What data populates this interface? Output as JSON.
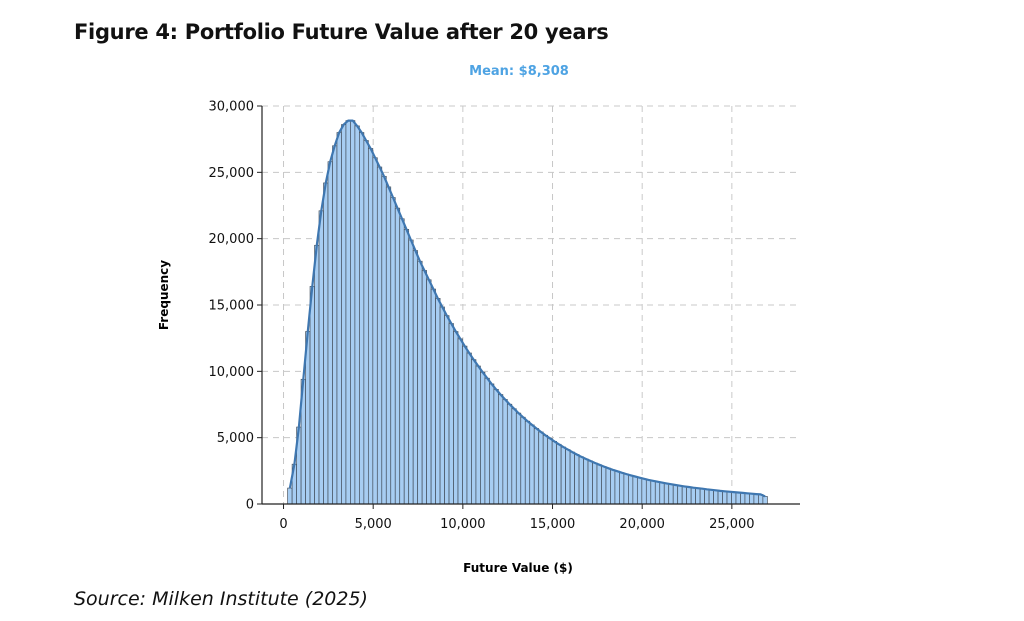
{
  "figure": {
    "title": "Figure 4: Portfolio Future Value after 20 years",
    "source": "Source: Milken Institute (2025)"
  },
  "chart_data": {
    "type": "bar",
    "title": "Mean: $8,308",
    "xlabel": "Future Value ($)",
    "ylabel": "Frequency",
    "xlim": [
      -1200,
      28800
    ],
    "ylim": [
      0,
      30000
    ],
    "grid": true,
    "colors": {
      "bar_fill": "#a7cdf2",
      "bar_stroke": "#44505e",
      "kde_line": "#3f77b0",
      "title": "#4ea3e3",
      "grid": "#c8c8c8"
    },
    "x_ticks": [
      0,
      5000,
      10000,
      15000,
      20000,
      25000
    ],
    "x_tick_labels": [
      "0",
      "5,000",
      "10,000",
      "15,000",
      "20,000",
      "25,000"
    ],
    "y_ticks": [
      0,
      5000,
      10000,
      15000,
      20000,
      25000,
      30000
    ],
    "y_tick_labels": [
      "0",
      "5,000",
      "10,000",
      "15,000",
      "20,000",
      "25,000",
      "30,000"
    ],
    "bin_start": 230,
    "bin_width": 250,
    "values": [
      1200,
      3000,
      5800,
      9400,
      13000,
      16400,
      19500,
      22100,
      24200,
      25800,
      27000,
      28000,
      28600,
      28900,
      28900,
      28500,
      28000,
      27400,
      26800,
      26100,
      25400,
      24700,
      23900,
      23100,
      22300,
      21500,
      20700,
      19900,
      19100,
      18300,
      17600,
      16900,
      16200,
      15500,
      14850,
      14200,
      13600,
      13000,
      12450,
      11900,
      11380,
      10880,
      10400,
      9930,
      9480,
      9050,
      8640,
      8250,
      7880,
      7520,
      7180,
      6850,
      6540,
      6240,
      5960,
      5690,
      5430,
      5180,
      4950,
      4720,
      4500,
      4290,
      4100,
      3910,
      3730,
      3560,
      3400,
      3250,
      3100,
      2960,
      2830,
      2700,
      2580,
      2470,
      2360,
      2260,
      2160,
      2070,
      1980,
      1900,
      1820,
      1750,
      1680,
      1610,
      1550,
      1490,
      1430,
      1380,
      1330,
      1280,
      1230,
      1190,
      1150,
      1110,
      1070,
      1030,
      990,
      960,
      930,
      900,
      870,
      840,
      810,
      780,
      750,
      720,
      570
    ]
  }
}
